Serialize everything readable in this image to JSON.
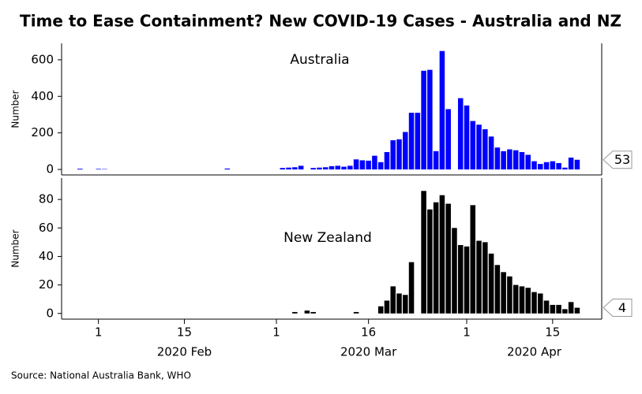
{
  "title": "Time to Ease Containment? New COVID-19 Cases - Australia and NZ",
  "source": "Source: National Australia Bank, WHO",
  "chart_data": [
    {
      "type": "bar",
      "ylabel": "Number",
      "x": [
        "2020-01-26",
        "2020-01-27",
        "2020-01-28",
        "2020-01-29",
        "2020-01-30",
        "2020-01-31",
        "2020-02-01",
        "2020-02-02",
        "2020-02-03",
        "2020-02-04",
        "2020-02-05",
        "2020-02-06",
        "2020-02-07",
        "2020-02-08",
        "2020-02-09",
        "2020-02-10",
        "2020-02-11",
        "2020-02-12",
        "2020-02-13",
        "2020-02-14",
        "2020-02-15",
        "2020-02-16",
        "2020-02-17",
        "2020-02-18",
        "2020-02-19",
        "2020-02-20",
        "2020-02-21",
        "2020-02-22",
        "2020-02-23",
        "2020-02-24",
        "2020-02-25",
        "2020-02-26",
        "2020-02-27",
        "2020-02-28",
        "2020-02-29",
        "2020-03-01",
        "2020-03-02",
        "2020-03-03",
        "2020-03-04",
        "2020-03-05",
        "2020-03-06",
        "2020-03-07",
        "2020-03-08",
        "2020-03-09",
        "2020-03-10",
        "2020-03-11",
        "2020-03-12",
        "2020-03-13",
        "2020-03-14",
        "2020-03-15",
        "2020-03-16",
        "2020-03-17",
        "2020-03-18",
        "2020-03-19",
        "2020-03-20",
        "2020-03-21",
        "2020-03-22",
        "2020-03-23",
        "2020-03-24",
        "2020-03-25",
        "2020-03-26",
        "2020-03-27",
        "2020-03-28",
        "2020-03-29",
        "2020-03-30",
        "2020-03-31",
        "2020-04-01",
        "2020-04-02",
        "2020-04-03",
        "2020-04-04",
        "2020-04-05",
        "2020-04-06",
        "2020-04-07",
        "2020-04-08",
        "2020-04-09",
        "2020-04-10",
        "2020-04-11",
        "2020-04-12",
        "2020-04-13",
        "2020-04-14",
        "2020-04-15",
        "2020-04-16",
        "2020-04-17",
        "2020-04-18",
        "2020-04-19"
      ],
      "series": [
        {
          "name": "Australia",
          "color": "#0000ff",
          "values": [
            0,
            0,
            0,
            4,
            0,
            0,
            3,
            2,
            0,
            0,
            0,
            0,
            0,
            0,
            0,
            0,
            0,
            0,
            0,
            0,
            0,
            0,
            0,
            0,
            0,
            0,
            0,
            5,
            0,
            0,
            0,
            0,
            0,
            0,
            0,
            0,
            8,
            10,
            12,
            20,
            0,
            8,
            10,
            12,
            18,
            20,
            15,
            20,
            55,
            50,
            48,
            75,
            40,
            95,
            160,
            165,
            205,
            310,
            310,
            540,
            545,
            100,
            648,
            330,
            0,
            390,
            350,
            265,
            245,
            220,
            180,
            120,
            100,
            110,
            105,
            95,
            80,
            45,
            30,
            40,
            45,
            35,
            10,
            65,
            53
          ]
        }
      ],
      "xlim": [
        "2020-01-26",
        "2020-04-23"
      ],
      "ylim": [
        -30,
        690
      ],
      "yticks": [
        0,
        200,
        400,
        600
      ]
    },
    {
      "type": "bar",
      "ylabel": "Number",
      "x": [
        "2020-01-26",
        "2020-01-27",
        "2020-01-28",
        "2020-01-29",
        "2020-01-30",
        "2020-01-31",
        "2020-02-01",
        "2020-02-02",
        "2020-02-03",
        "2020-02-04",
        "2020-02-05",
        "2020-02-06",
        "2020-02-07",
        "2020-02-08",
        "2020-02-09",
        "2020-02-10",
        "2020-02-11",
        "2020-02-12",
        "2020-02-13",
        "2020-02-14",
        "2020-02-15",
        "2020-02-16",
        "2020-02-17",
        "2020-02-18",
        "2020-02-19",
        "2020-02-20",
        "2020-02-21",
        "2020-02-22",
        "2020-02-23",
        "2020-02-24",
        "2020-02-25",
        "2020-02-26",
        "2020-02-27",
        "2020-02-28",
        "2020-02-29",
        "2020-03-01",
        "2020-03-02",
        "2020-03-03",
        "2020-03-04",
        "2020-03-05",
        "2020-03-06",
        "2020-03-07",
        "2020-03-08",
        "2020-03-09",
        "2020-03-10",
        "2020-03-11",
        "2020-03-12",
        "2020-03-13",
        "2020-03-14",
        "2020-03-15",
        "2020-03-16",
        "2020-03-17",
        "2020-03-18",
        "2020-03-19",
        "2020-03-20",
        "2020-03-21",
        "2020-03-22",
        "2020-03-23",
        "2020-03-24",
        "2020-03-25",
        "2020-03-26",
        "2020-03-27",
        "2020-03-28",
        "2020-03-29",
        "2020-03-30",
        "2020-03-31",
        "2020-04-01",
        "2020-04-02",
        "2020-04-03",
        "2020-04-04",
        "2020-04-05",
        "2020-04-06",
        "2020-04-07",
        "2020-04-08",
        "2020-04-09",
        "2020-04-10",
        "2020-04-11",
        "2020-04-12",
        "2020-04-13",
        "2020-04-14",
        "2020-04-15",
        "2020-04-16",
        "2020-04-17",
        "2020-04-18",
        "2020-04-19"
      ],
      "series": [
        {
          "name": "New Zealand",
          "color": "#000000",
          "values": [
            0,
            0,
            0,
            0,
            0,
            0,
            0,
            0,
            0,
            0,
            0,
            0,
            0,
            0,
            0,
            0,
            0,
            0,
            0,
            0,
            0,
            0,
            0,
            0,
            0,
            0,
            0,
            0,
            0,
            0,
            0,
            0,
            0,
            0,
            0,
            0,
            0,
            0,
            1,
            0,
            2,
            1,
            0,
            0,
            0,
            0,
            0,
            0,
            1,
            0,
            0,
            0,
            5,
            9,
            19,
            14,
            13,
            36,
            0,
            86,
            73,
            78,
            83,
            77,
            60,
            48,
            47,
            76,
            51,
            50,
            42,
            34,
            29,
            26,
            20,
            19,
            18,
            15,
            14,
            9,
            6,
            6,
            3,
            8,
            4
          ]
        }
      ],
      "xlim": [
        "2020-01-26",
        "2020-04-23"
      ],
      "ylim": [
        -4,
        95
      ],
      "yticks": [
        0,
        20,
        40,
        60,
        80
      ],
      "xticks": [
        {
          "value": "2020-02-01",
          "label": "1"
        },
        {
          "value": "2020-02-15",
          "label": "15"
        },
        {
          "value": "2020-03-01",
          "label": "1"
        },
        {
          "value": "2020-03-16",
          "label": "16"
        },
        {
          "value": "2020-04-01",
          "label": "1"
        },
        {
          "value": "2020-04-15",
          "label": "15"
        }
      ],
      "xmonths": [
        {
          "value": "2020-02-15",
          "label": "2020 Feb"
        },
        {
          "value": "2020-03-16",
          "label": "2020 Mar"
        },
        {
          "value": "2020-04-12",
          "label": "2020 Apr"
        }
      ]
    }
  ]
}
